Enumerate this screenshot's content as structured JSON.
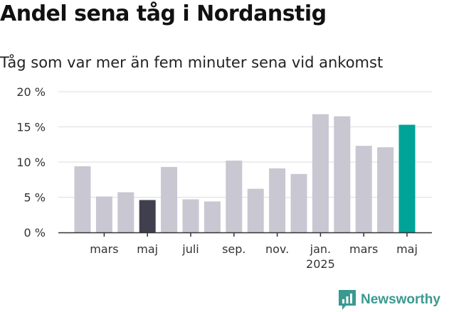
{
  "header": {
    "title": "Andel sena tåg i Nordanstig",
    "subtitle": "Tåg som var mer än fem minuter sena vid ankomst"
  },
  "brand": {
    "name": "Newsworthy",
    "color": "#3a9991",
    "icon": "newsworthy-logo-icon"
  },
  "colors": {
    "default": "#c8c7d2",
    "previous_year": "#403f4e",
    "current": "#00a398",
    "grid": "#dddddd",
    "axis": "#333333"
  },
  "chart_data": {
    "type": "bar",
    "title": "Andel sena tåg i Nordanstig",
    "subtitle": "Tåg som var mer än fem minuter sena vid ankomst",
    "xlabel": "",
    "ylabel": "",
    "ylim": [
      0,
      20
    ],
    "y_ticks": [
      0,
      5,
      10,
      15,
      20
    ],
    "y_tick_labels": [
      "0 %",
      "5 %",
      "10 %",
      "15 %",
      "20 %"
    ],
    "grid": true,
    "categories": [
      "2024-02",
      "2024-03",
      "2024-04",
      "2024-05",
      "2024-06",
      "2024-07",
      "2024-08",
      "2024-09",
      "2024-10",
      "2024-11",
      "2024-12",
      "2025-01",
      "2025-02",
      "2025-03",
      "2025-04",
      "2025-05"
    ],
    "values": [
      9.4,
      5.1,
      5.7,
      4.6,
      9.3,
      4.7,
      4.4,
      10.2,
      6.2,
      9.1,
      8.3,
      16.8,
      16.5,
      12.3,
      12.1,
      15.3
    ],
    "highlights": {
      "3": "previous_year",
      "15": "current"
    },
    "x_tick_labels": [
      {
        "index": 1,
        "label": "mars",
        "sublabel": ""
      },
      {
        "index": 3,
        "label": "maj",
        "sublabel": ""
      },
      {
        "index": 5,
        "label": "juli",
        "sublabel": ""
      },
      {
        "index": 7,
        "label": "sep.",
        "sublabel": ""
      },
      {
        "index": 9,
        "label": "nov.",
        "sublabel": ""
      },
      {
        "index": 11,
        "label": "jan.",
        "sublabel": "2025"
      },
      {
        "index": 13,
        "label": "mars",
        "sublabel": ""
      },
      {
        "index": 15,
        "label": "maj",
        "sublabel": ""
      }
    ]
  }
}
